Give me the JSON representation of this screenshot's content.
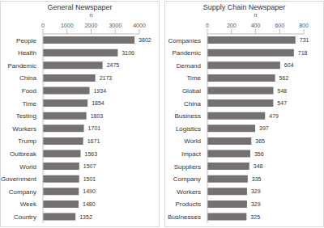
{
  "chart_data": [
    {
      "type": "bar",
      "title": "General Newspaper",
      "orientation": "horizontal",
      "x_label": "n",
      "categories": [
        "People",
        "Health",
        "Pandemic",
        "China",
        "Food",
        "Time",
        "Testing",
        "Workers",
        "Trump",
        "Outbreak",
        "World",
        "Government",
        "Company",
        "Week",
        "Country"
      ],
      "values": [
        3802,
        3106,
        2475,
        2173,
        1934,
        1854,
        1803,
        1701,
        1671,
        1563,
        1507,
        1501,
        1490,
        1480,
        1352
      ],
      "color": "#767171",
      "xlim": [
        0,
        4000
      ],
      "xticks": [
        0,
        1000,
        2000,
        3000,
        4000
      ],
      "data_labels": true
    },
    {
      "type": "bar",
      "title": "Supply Chain Newspaper",
      "orientation": "horizontal",
      "x_label": "n",
      "categories": [
        "Companies",
        "Pandemic",
        "Demand",
        "Time",
        "Global",
        "China",
        "Business",
        "Logistics",
        "World",
        "Impact",
        "Suppliers",
        "Company",
        "Workers",
        "Products",
        "Businesses"
      ],
      "values": [
        731,
        718,
        604,
        562,
        548,
        547,
        479,
        397,
        365,
        356,
        348,
        335,
        329,
        329,
        325
      ],
      "color": "#767171",
      "xlim": [
        0,
        800
      ],
      "xticks": [
        0,
        200,
        400,
        600,
        800
      ],
      "data_labels": true
    }
  ]
}
